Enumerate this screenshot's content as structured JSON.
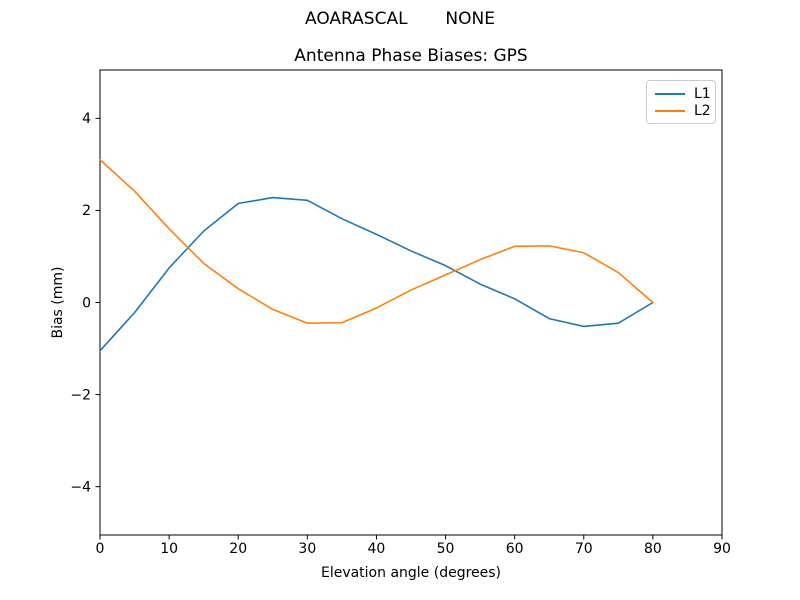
{
  "chart_data": {
    "type": "line",
    "suptitle": "AOARASCAL       NONE",
    "title": "Antenna Phase Biases: GPS",
    "xlabel": "Elevation angle (degrees)",
    "ylabel": "Bias (mm)",
    "xlim": [
      0,
      90
    ],
    "ylim": [
      -5.05,
      5.05
    ],
    "xticks": [
      0,
      10,
      20,
      30,
      40,
      50,
      60,
      70,
      80,
      90
    ],
    "yticks": [
      -4,
      -2,
      0,
      2,
      4
    ],
    "grid": false,
    "legend_position": "upper right",
    "x": [
      0,
      5,
      10,
      15,
      20,
      25,
      30,
      35,
      40,
      45,
      50,
      55,
      60,
      65,
      70,
      75,
      80
    ],
    "series": [
      {
        "name": "L1",
        "color": "#1f77b4",
        "values": [
          -1.05,
          -0.22,
          0.75,
          1.55,
          2.15,
          2.28,
          2.22,
          1.82,
          1.48,
          1.12,
          0.8,
          0.4,
          0.08,
          -0.35,
          -0.52,
          -0.45,
          0.0
        ]
      },
      {
        "name": "L2",
        "color": "#ff7f0e",
        "values": [
          3.1,
          2.42,
          1.6,
          0.85,
          0.3,
          -0.15,
          -0.45,
          -0.44,
          -0.12,
          0.27,
          0.6,
          0.93,
          1.22,
          1.23,
          1.08,
          0.65,
          0.0
        ]
      }
    ],
    "text_color": "#000000",
    "spine_color": "#000000"
  }
}
